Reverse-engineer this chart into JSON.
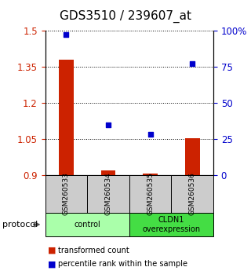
{
  "title": "GDS3510 / 239607_at",
  "samples": [
    "GSM260533",
    "GSM260534",
    "GSM260535",
    "GSM260536"
  ],
  "transformed_count": [
    1.38,
    0.92,
    0.905,
    1.052
  ],
  "percentile_rank": [
    97,
    35,
    28,
    77
  ],
  "ylim_left": [
    0.9,
    1.5
  ],
  "ylim_right": [
    0,
    100
  ],
  "yticks_left": [
    0.9,
    1.05,
    1.2,
    1.35,
    1.5
  ],
  "yticks_right": [
    0,
    25,
    50,
    75,
    100
  ],
  "ytick_labels_right": [
    "0",
    "25",
    "50",
    "75",
    "100%"
  ],
  "bar_color": "#cc2200",
  "dot_color": "#0000cc",
  "groups": [
    {
      "label": "control",
      "samples": [
        0,
        1
      ],
      "color": "#aaffaa"
    },
    {
      "label": "CLDN1\noverexpression",
      "samples": [
        2,
        3
      ],
      "color": "#44dd44"
    }
  ],
  "protocol_label": "protocol",
  "legend_bar_label": "transformed count",
  "legend_dot_label": "percentile rank within the sample",
  "grid_linestyle": "dotted",
  "sample_box_color": "#cccccc",
  "title_fontsize": 11,
  "tick_fontsize": 8.5,
  "bar_width": 0.35
}
